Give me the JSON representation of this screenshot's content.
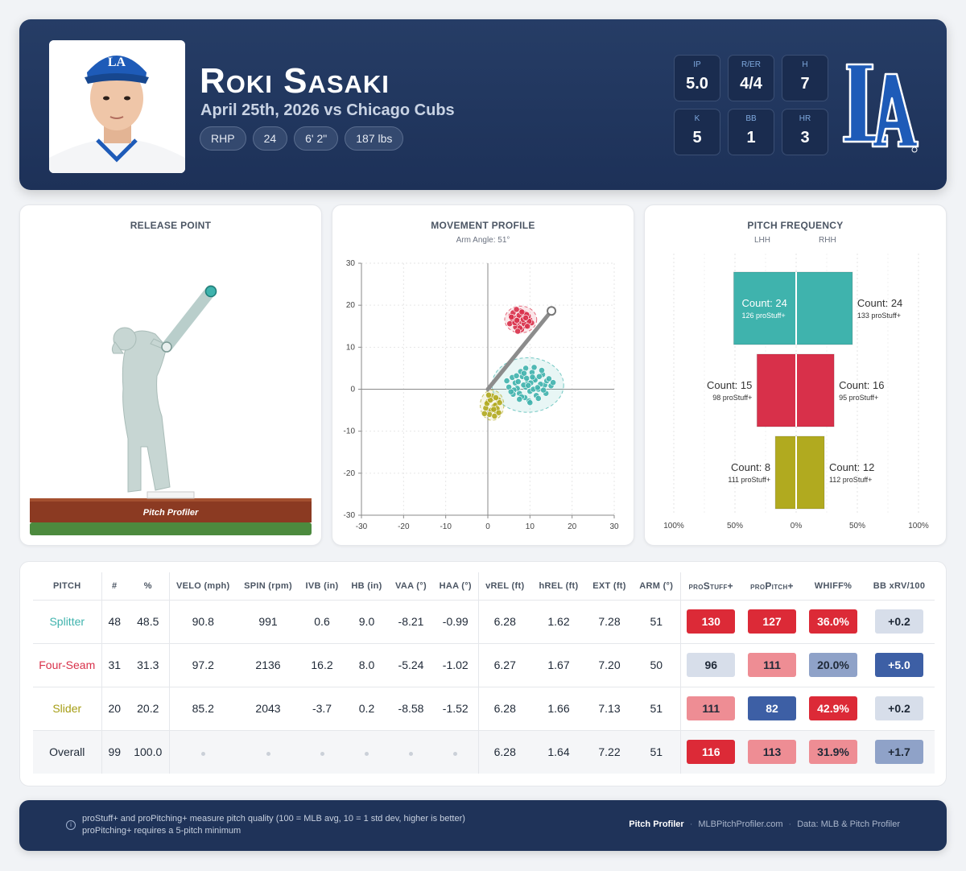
{
  "player": {
    "name": "Roki Sasaki",
    "subtitle": "April 25th, 2026 vs Chicago Cubs",
    "pills": [
      "RHP",
      "24",
      "6' 2\"",
      "187 lbs"
    ]
  },
  "stats": [
    {
      "label": "IP",
      "value": "5.0"
    },
    {
      "label": "R/ER",
      "value": "4/4"
    },
    {
      "label": "H",
      "value": "7"
    },
    {
      "label": "K",
      "value": "5"
    },
    {
      "label": "BB",
      "value": "1"
    },
    {
      "label": "HR",
      "value": "3"
    }
  ],
  "colors": {
    "splitter": "#3fb3ad",
    "fourseam": "#d8304a",
    "slider": "#b1aa1f",
    "header_bg": "#243a63",
    "badge_red_strong": "#dc2a37",
    "badge_red_light": "#ee8d94",
    "badge_blue_strong": "#3d5fa5",
    "badge_blue_light": "#d7deea",
    "badge_blue_mid": "#8fa2c8"
  },
  "panels": {
    "release_title": "RELEASE POINT",
    "movement_title": "MOVEMENT PROFILE",
    "movement_sub": "Arm Angle: 51°",
    "frequency_title": "PITCH FREQUENCY",
    "lhh": "LHH",
    "rhh": "RHH",
    "brand_mound": "Pitch Profiler"
  },
  "chart_data": [
    {
      "type": "scatter",
      "title": "MOVEMENT PROFILE",
      "subtitle": "Arm Angle: 51°",
      "xlim": [
        -30,
        30
      ],
      "ylim": [
        -30,
        30
      ],
      "xticks": [
        -30,
        -20,
        -10,
        0,
        10,
        20,
        30
      ],
      "yticks": [
        30,
        20,
        10,
        0,
        -10,
        -20,
        -30
      ],
      "grid": true,
      "series": [
        {
          "name": "Splitter",
          "x": [
            6.5,
            9.0,
            7.5,
            11.0,
            13.5,
            8.2,
            10.0,
            12.0,
            14.0,
            9.5,
            7.0,
            5.8,
            11.5,
            13.0,
            8.8,
            10.5,
            6.2,
            12.5,
            15.0,
            9.8,
            7.8,
            11.2,
            5.0,
            8.5,
            13.8,
            10.8,
            6.8,
            9.2,
            12.2,
            14.5,
            8.0,
            10.2,
            7.2,
            11.8,
            4.5,
            9.0,
            13.2,
            6.0,
            10.0,
            12.8,
            8.6,
            11.0,
            15.5,
            7.5,
            9.6,
            5.5,
            12.0,
            10.6
          ],
          "y": [
            1.5,
            0.5,
            -1.0,
            2.5,
            1.0,
            3.0,
            -0.5,
            0.0,
            2.0,
            1.8,
            0.2,
            2.8,
            -1.5,
            3.5,
            -2.0,
            4.0,
            -0.2,
            1.2,
            0.8,
            -2.8,
            4.2,
            2.2,
            0.5,
            1.0,
            -1.0,
            0.0,
            3.2,
            2.6,
            3.0,
            2.5,
            -1.8,
            1.5,
            1.8,
            0.4,
            2.0,
            5.0,
            -0.2,
            -1.2,
            -3.2,
            4.5,
            3.8,
            5.2,
            1.6,
            -2.4,
            0.9,
            -0.6,
            -2.2,
            2.9
          ]
        },
        {
          "name": "Four-Seam",
          "x": [
            5.5,
            7.5,
            9.0,
            6.0,
            8.2,
            10.0,
            7.0,
            5.8,
            8.8,
            9.6,
            6.6,
            7.8,
            10.4,
            6.2,
            8.0,
            9.2,
            5.2,
            7.2,
            8.6,
            6.8,
            9.8,
            7.4,
            8.4,
            6.4,
            7.6,
            5.6,
            9.4,
            6.9,
            8.1,
            7.1,
            9.0
          ],
          "y": [
            17.5,
            16.0,
            15.0,
            18.2,
            17.0,
            16.5,
            15.2,
            16.2,
            18.0,
            17.4,
            14.8,
            18.6,
            15.8,
            17.0,
            14.2,
            17.8,
            15.6,
            16.8,
            15.6,
            19.0,
            16.2,
            17.6,
            16.6,
            15.8,
            14.6,
            17.2,
            15.0,
            16.4,
            18.4,
            13.8,
            17.0
          ]
        },
        {
          "name": "Slider",
          "x": [
            0.0,
            1.5,
            2.5,
            0.8,
            1.8,
            -0.5,
            1.2,
            2.8,
            0.4,
            2.0,
            1.0,
            -0.2,
            2.2,
            1.6,
            0.6,
            2.6,
            1.4,
            -0.8,
            0.2,
            1.9
          ],
          "y": [
            -3.0,
            -4.0,
            -2.5,
            -5.0,
            -3.8,
            -4.5,
            -2.2,
            -3.2,
            -6.0,
            -5.2,
            -1.6,
            -3.4,
            -4.6,
            -6.4,
            -2.6,
            -5.6,
            -4.8,
            -5.8,
            -1.4,
            -2.0
          ]
        }
      ],
      "arm_angle_deg": 51
    },
    {
      "type": "bar",
      "title": "PITCH FREQUENCY",
      "orientation": "horizontal-diverging",
      "xticks": [
        "100%",
        "50%",
        "0%",
        "50%",
        "100%"
      ],
      "categories": [
        "Splitter",
        "Four-Seam",
        "Slider"
      ],
      "series": [
        {
          "name": "LHH",
          "counts": [
            24,
            15,
            8
          ],
          "pct": [
            51,
            32,
            17
          ],
          "labels": [
            "Count: 24",
            "Count: 15",
            "Count: 8"
          ],
          "sublabels": [
            "126 proStuff+",
            "98 proStuff+",
            "111 proStuff+"
          ]
        },
        {
          "name": "RHH",
          "counts": [
            24,
            16,
            12
          ],
          "pct": [
            46,
            31,
            23
          ],
          "labels": [
            "Count: 24",
            "Count: 16",
            "Count: 12"
          ],
          "sublabels": [
            "133 proStuff+",
            "95 proStuff+",
            "112 proStuff+"
          ]
        }
      ]
    },
    {
      "type": "table",
      "columns": [
        "PITCH",
        "#",
        "%",
        "VELO (mph)",
        "SPIN (rpm)",
        "IVB (in)",
        "HB (in)",
        "VAA (°)",
        "HAA (°)",
        "vREL (ft)",
        "hREL (ft)",
        "EXT (ft)",
        "ARM (°)",
        "proStuff+",
        "proPitch+",
        "WHIFF%",
        "BB xRV/100"
      ],
      "rows": [
        {
          "pitch": "Splitter",
          "color": "#3fb3ad",
          "n": "48",
          "pct": "48.5",
          "velo": "90.8",
          "spin": "991",
          "ivb": "0.6",
          "hb": "9.0",
          "vaa": "-8.21",
          "haa": "-0.99",
          "vrel": "6.28",
          "hrel": "1.62",
          "ext": "7.28",
          "arm": "51",
          "stuff": "130",
          "stuff_bg": "#dc2a37",
          "stuff_fg": "#ffffff",
          "pitch_plus": "127",
          "pitch_bg": "#dc2a37",
          "pitch_fg": "#ffffff",
          "whiff": "36.0%",
          "whiff_bg": "#dc2a37",
          "whiff_fg": "#ffffff",
          "xrv": "+0.2",
          "xrv_bg": "#d7deea",
          "xrv_fg": "#1f2937"
        },
        {
          "pitch": "Four-Seam",
          "color": "#d8304a",
          "n": "31",
          "pct": "31.3",
          "velo": "97.2",
          "spin": "2136",
          "ivb": "16.2",
          "hb": "8.0",
          "vaa": "-5.24",
          "haa": "-1.02",
          "vrel": "6.27",
          "hrel": "1.67",
          "ext": "7.20",
          "arm": "50",
          "stuff": "96",
          "stuff_bg": "#d7deea",
          "stuff_fg": "#1f2937",
          "pitch_plus": "111",
          "pitch_bg": "#ee8d94",
          "pitch_fg": "#1f2937",
          "whiff": "20.0%",
          "whiff_bg": "#8fa2c8",
          "whiff_fg": "#1f2937",
          "xrv": "+5.0",
          "xrv_bg": "#3d5fa5",
          "xrv_fg": "#ffffff"
        },
        {
          "pitch": "Slider",
          "color": "#a59d13",
          "n": "20",
          "pct": "20.2",
          "velo": "85.2",
          "spin": "2043",
          "ivb": "-3.7",
          "hb": "0.2",
          "vaa": "-8.58",
          "haa": "-1.52",
          "vrel": "6.28",
          "hrel": "1.66",
          "ext": "7.13",
          "arm": "51",
          "stuff": "111",
          "stuff_bg": "#ee8d94",
          "stuff_fg": "#1f2937",
          "pitch_plus": "82",
          "pitch_bg": "#3d5fa5",
          "pitch_fg": "#ffffff",
          "whiff": "42.9%",
          "whiff_bg": "#dc2a37",
          "whiff_fg": "#ffffff",
          "xrv": "+0.2",
          "xrv_bg": "#d7deea",
          "xrv_fg": "#1f2937"
        },
        {
          "pitch": "Overall",
          "color": "#1f2937",
          "n": "99",
          "pct": "100.0",
          "velo": "",
          "spin": "",
          "ivb": "",
          "hb": "",
          "vaa": "",
          "haa": "",
          "vrel": "6.28",
          "hrel": "1.64",
          "ext": "7.22",
          "arm": "51",
          "stuff": "116",
          "stuff_bg": "#dc2a37",
          "stuff_fg": "#ffffff",
          "pitch_plus": "113",
          "pitch_bg": "#ee8d94",
          "pitch_fg": "#1f2937",
          "whiff": "31.9%",
          "whiff_bg": "#ee8d94",
          "whiff_fg": "#1f2937",
          "xrv": "+1.7",
          "xrv_bg": "#8fa2c8",
          "xrv_fg": "#1f2937"
        }
      ]
    }
  ],
  "footer": {
    "note1": "proStuff+ and proPitching+ measure pitch quality (100 = MLB avg, 10 = 1 std dev, higher is better)",
    "note2": "proPitching+ requires a 5-pitch minimum",
    "brand": "Pitch Profiler",
    "site": "MLBPitchProfiler.com",
    "source": "Data: MLB & Pitch Profiler",
    "sep": "·"
  }
}
